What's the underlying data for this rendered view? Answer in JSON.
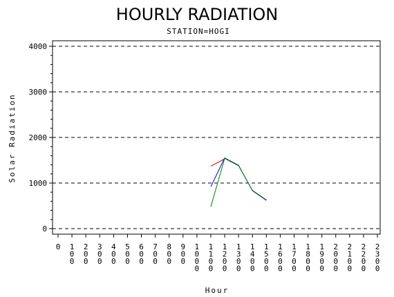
{
  "chart_data": {
    "type": "line",
    "title": "HOURLY RADIATION",
    "subtitle": "STATION=HOGI",
    "xlabel": "Hour",
    "ylabel": "Solar Radiation",
    "xlim": [
      0,
      2300
    ],
    "ylim": [
      0,
      4000
    ],
    "x_ticks": [
      0,
      100,
      200,
      300,
      400,
      500,
      600,
      700,
      800,
      900,
      1000,
      1100,
      1200,
      1300,
      1400,
      1500,
      1600,
      1700,
      1800,
      1900,
      2000,
      2100,
      2200,
      2300
    ],
    "y_ticks": [
      0,
      1000,
      2000,
      3000,
      4000
    ],
    "grid": "horizontal-dashed",
    "series": [
      {
        "color": "#0000cc",
        "points": [
          [
            1100,
            920
          ],
          [
            1200,
            1550
          ],
          [
            1300,
            1390
          ],
          [
            1400,
            830
          ],
          [
            1500,
            620
          ]
        ]
      },
      {
        "color": "#cc0000",
        "points": [
          [
            1100,
            1370
          ],
          [
            1200,
            1530
          ]
        ]
      },
      {
        "color": "#008000",
        "points": [
          [
            1100,
            480
          ],
          [
            1200,
            1540
          ],
          [
            1300,
            1380
          ],
          [
            1400,
            840
          ],
          [
            1500,
            630
          ]
        ]
      }
    ]
  }
}
